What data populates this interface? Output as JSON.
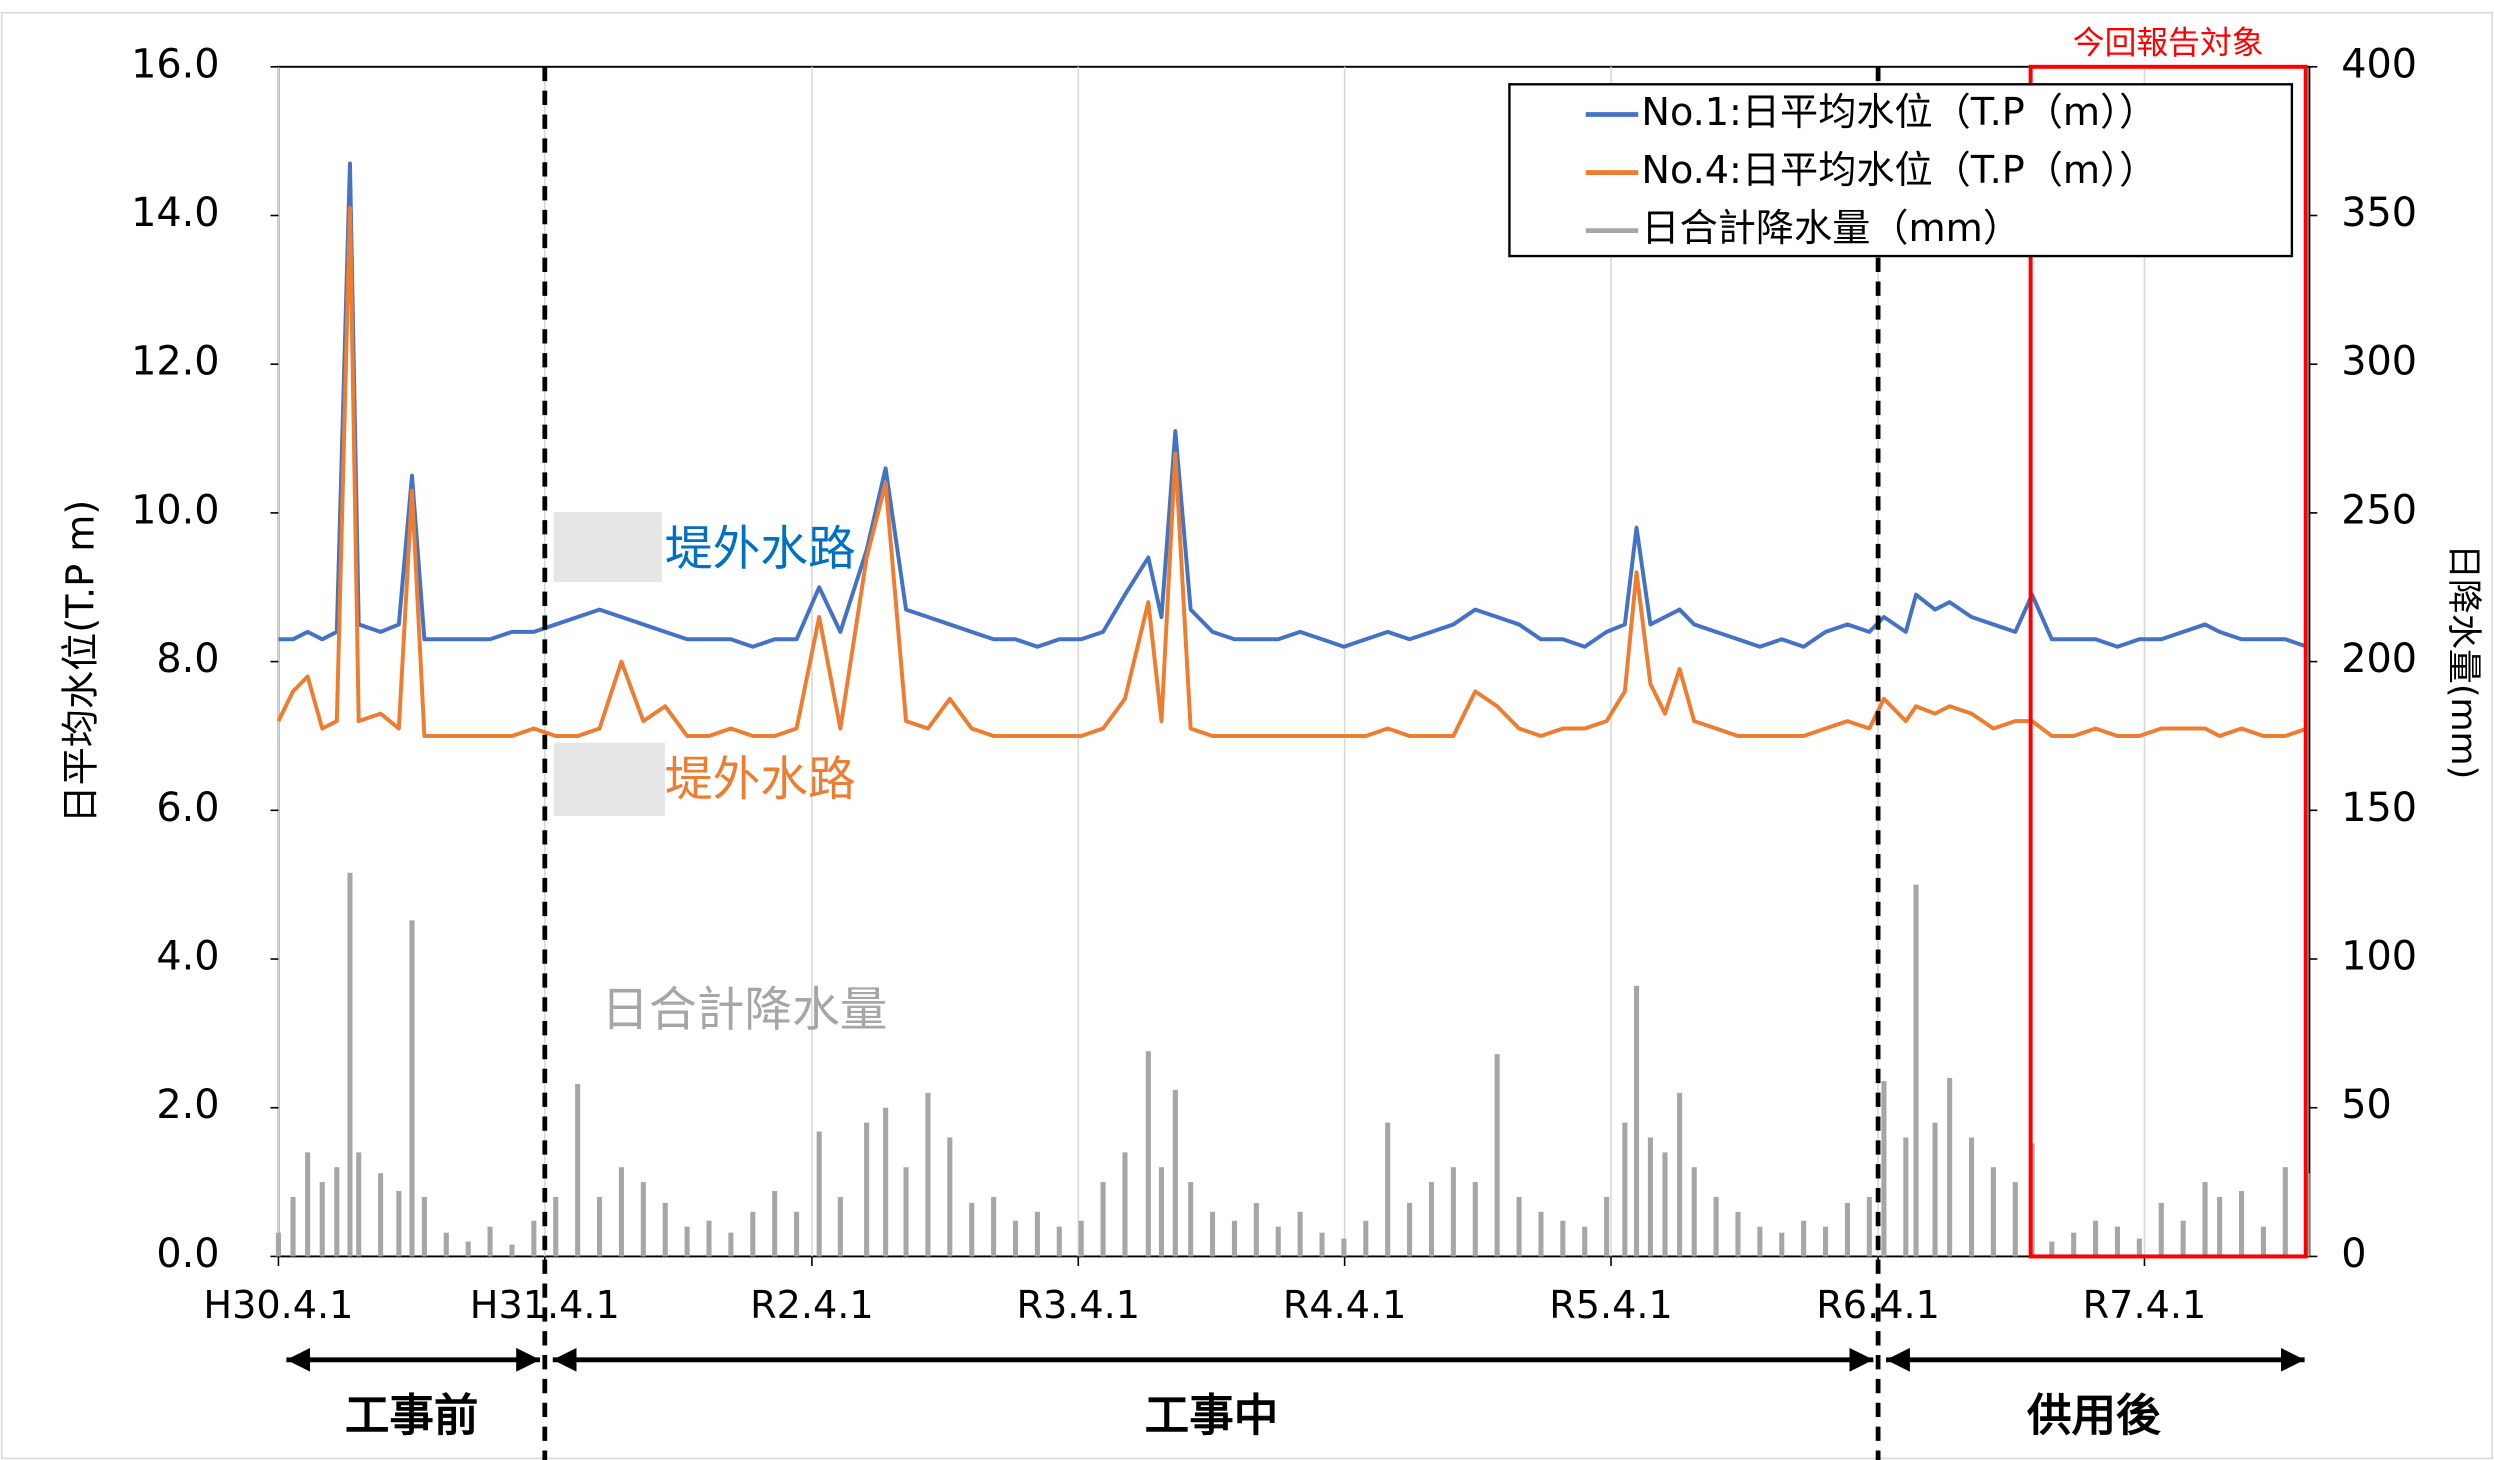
{
  "chart_data": {
    "type": "line",
    "y_label": "日平均水位(T.P m)",
    "y2_label": "日降水量(mm)",
    "x": [
      0,
      20,
      40,
      60,
      80,
      98,
      110,
      140,
      165,
      183,
      200,
      230,
      260,
      290,
      320,
      350,
      380,
      410,
      440,
      470,
      500,
      530,
      560,
      590,
      620,
      650,
      680,
      710,
      741,
      770,
      806,
      832,
      860,
      890,
      920,
      950,
      980,
      1010,
      1040,
      1070,
      1100,
      1130,
      1160,
      1192,
      1210,
      1229,
      1250,
      1280,
      1310,
      1340,
      1370,
      1400,
      1430,
      1460,
      1490,
      1520,
      1550,
      1580,
      1610,
      1640,
      1670,
      1700,
      1730,
      1760,
      1790,
      1820,
      1845,
      1861,
      1880,
      1900,
      1920,
      1940,
      1970,
      2000,
      2030,
      2060,
      2090,
      2120,
      2150,
      2180,
      2200,
      2230,
      2244,
      2270,
      2290,
      2320,
      2350,
      2380,
      2403,
      2430,
      2460,
      2490,
      2520,
      2550,
      2580,
      2610,
      2640,
      2660,
      2690,
      2720,
      2750,
      2780
    ],
    "series": [
      {
        "name": "No.1:日平均水位（T.P（m））",
        "color": "#4472c4",
        "values": [
          8.3,
          8.3,
          8.4,
          8.3,
          8.4,
          14.7,
          8.5,
          8.4,
          8.5,
          10.5,
          8.3,
          8.3,
          8.3,
          8.3,
          8.4,
          8.4,
          8.5,
          8.6,
          8.7,
          8.6,
          8.5,
          8.4,
          8.3,
          8.3,
          8.3,
          8.2,
          8.3,
          8.3,
          9.0,
          8.4,
          9.5,
          10.6,
          8.7,
          8.6,
          8.5,
          8.4,
          8.3,
          8.3,
          8.2,
          8.3,
          8.3,
          8.4,
          8.9,
          9.4,
          8.6,
          11.1,
          8.7,
          8.4,
          8.3,
          8.3,
          8.3,
          8.4,
          8.3,
          8.2,
          8.3,
          8.4,
          8.3,
          8.4,
          8.5,
          8.7,
          8.6,
          8.5,
          8.3,
          8.3,
          8.2,
          8.4,
          8.5,
          9.8,
          8.5,
          8.6,
          8.7,
          8.5,
          8.4,
          8.3,
          8.2,
          8.3,
          8.2,
          8.4,
          8.5,
          8.4,
          8.6,
          8.4,
          8.9,
          8.7,
          8.8,
          8.6,
          8.5,
          8.4,
          8.9,
          8.3,
          8.3,
          8.3,
          8.2,
          8.3,
          8.3,
          8.4,
          8.5,
          8.4,
          8.3,
          8.3,
          8.3,
          8.2
        ]
      },
      {
        "name": "No.4:日平均水位（T.P（m））",
        "color": "#ed7d31",
        "values": [
          7.2,
          7.6,
          7.8,
          7.1,
          7.2,
          14.1,
          7.2,
          7.3,
          7.1,
          10.3,
          7.0,
          7.0,
          7.0,
          7.0,
          7.0,
          7.1,
          7.0,
          7.0,
          7.1,
          8.0,
          7.2,
          7.4,
          7.0,
          7.0,
          7.1,
          7.0,
          7.0,
          7.1,
          8.6,
          7.1,
          9.4,
          10.4,
          7.2,
          7.1,
          7.5,
          7.1,
          7.0,
          7.0,
          7.0,
          7.0,
          7.0,
          7.1,
          7.5,
          8.8,
          7.2,
          10.8,
          7.1,
          7.0,
          7.0,
          7.0,
          7.0,
          7.0,
          7.0,
          7.0,
          7.0,
          7.1,
          7.0,
          7.0,
          7.0,
          7.6,
          7.4,
          7.1,
          7.0,
          7.1,
          7.1,
          7.2,
          7.6,
          9.2,
          7.7,
          7.3,
          7.9,
          7.2,
          7.1,
          7.0,
          7.0,
          7.0,
          7.0,
          7.1,
          7.2,
          7.1,
          7.5,
          7.2,
          7.4,
          7.3,
          7.4,
          7.3,
          7.1,
          7.2,
          7.2,
          7.0,
          7.0,
          7.1,
          7.0,
          7.0,
          7.1,
          7.1,
          7.1,
          7.0,
          7.1,
          7.0,
          7.0,
          7.1
        ]
      },
      {
        "name": "日合計降水量（mm）",
        "color": "#a6a6a6",
        "axis": "y2",
        "kind": "bar",
        "values": [
          8,
          20,
          35,
          25,
          30,
          129,
          35,
          28,
          22,
          113,
          20,
          8,
          5,
          10,
          4,
          12,
          20,
          58,
          20,
          30,
          25,
          18,
          10,
          12,
          8,
          15,
          22,
          15,
          42,
          20,
          45,
          50,
          30,
          55,
          40,
          18,
          20,
          12,
          15,
          10,
          12,
          25,
          35,
          69,
          30,
          56,
          25,
          15,
          12,
          18,
          10,
          15,
          8,
          6,
          12,
          45,
          18,
          25,
          30,
          25,
          68,
          20,
          15,
          12,
          10,
          20,
          45,
          91,
          40,
          35,
          55,
          30,
          20,
          15,
          10,
          8,
          12,
          10,
          18,
          20,
          59,
          40,
          125,
          45,
          60,
          40,
          30,
          25,
          38,
          5,
          8,
          12,
          10,
          6,
          18,
          12,
          25,
          20,
          22,
          10,
          30,
          28
        ]
      }
    ],
    "xlim": [
      0,
      2783
    ],
    "xticks": [
      {
        "value": 0,
        "label": "H30.4.1"
      },
      {
        "value": 365,
        "label": "H31.4.1"
      },
      {
        "value": 731,
        "label": "R2.4.1"
      },
      {
        "value": 1096,
        "label": "R3.4.1"
      },
      {
        "value": 1461,
        "label": "R4.4.1"
      },
      {
        "value": 1826,
        "label": "R5.4.1"
      },
      {
        "value": 2192,
        "label": "R6.4.1"
      },
      {
        "value": 2557,
        "label": "R7.4.1"
      }
    ],
    "ylim": [
      0,
      16
    ],
    "yticks": [
      {
        "value": 0,
        "label": "0.0"
      },
      {
        "value": 2,
        "label": "2.0"
      },
      {
        "value": 4,
        "label": "4.0"
      },
      {
        "value": 6,
        "label": "6.0"
      },
      {
        "value": 8,
        "label": "8.0"
      },
      {
        "value": 10,
        "label": "10.0"
      },
      {
        "value": 12,
        "label": "12.0"
      },
      {
        "value": 14,
        "label": "14.0"
      },
      {
        "value": 16,
        "label": "16.0"
      }
    ],
    "y2lim": [
      0,
      400
    ],
    "y2ticks": [
      0,
      50,
      100,
      150,
      200,
      250,
      300,
      350,
      400
    ],
    "grid": "x",
    "legend": "upper right",
    "annotations": [
      {
        "text": "堤外水路",
        "color": "#0070c0"
      },
      {
        "text": "堤外水路",
        "color": "#ed7d31"
      },
      {
        "text": "日合計降水量",
        "color": "#a6a6a6"
      }
    ],
    "phases": [
      {
        "label": "工事前",
        "start": 0,
        "end": 365
      },
      {
        "label": "工事中",
        "start": 365,
        "end": 2192
      },
      {
        "label": "供用後",
        "start": 2192,
        "end": 2783
      }
    ],
    "report_period": {
      "label": "今回報告対象",
      "start": 2401,
      "end": 2778,
      "color": "#ff0000"
    }
  }
}
